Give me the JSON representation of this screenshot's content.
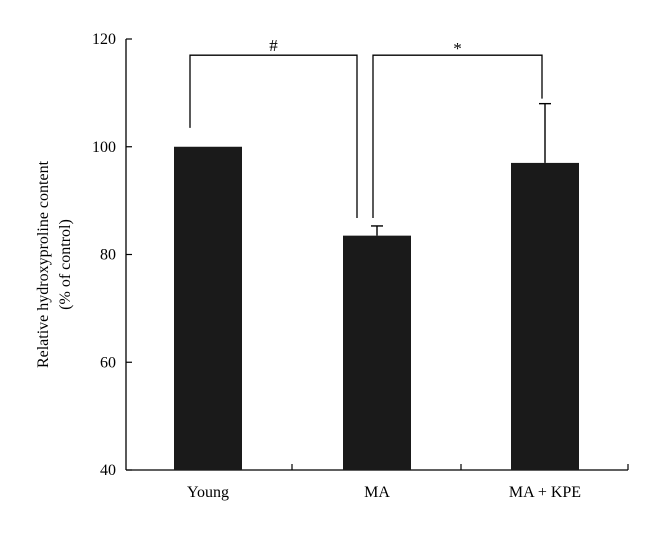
{
  "chart_data": {
    "type": "bar",
    "categories": [
      "Young",
      "MA",
      "MA + KPE"
    ],
    "values": [
      100,
      83.5,
      97
    ],
    "errors": [
      0,
      1.8,
      11
    ],
    "ylabel_line1": "Relative hydroxyproline content",
    "ylabel_line2": "(% of control)",
    "ylim": [
      40,
      120
    ],
    "yticks": [
      40,
      60,
      80,
      100,
      120
    ],
    "grid": false,
    "bar_color": "#1a1a1a",
    "significance": [
      {
        "from": 0,
        "to": 1,
        "label": "#",
        "level": 117
      },
      {
        "from": 1,
        "to": 2,
        "label": "*",
        "level": 117
      }
    ]
  }
}
